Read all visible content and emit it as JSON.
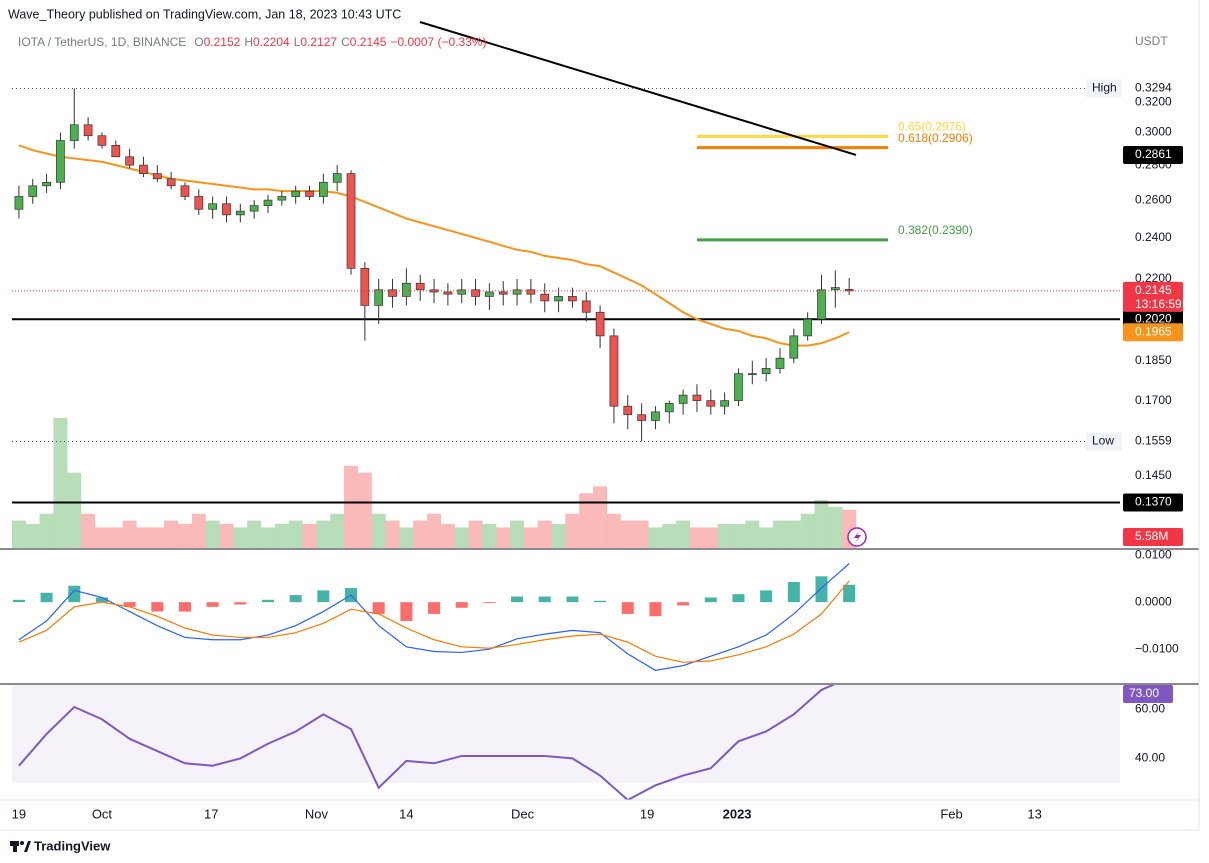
{
  "header": {
    "publisher": "Wave_Theory published on TradingView.com, Jan 18, 2023 10:43 UTC",
    "symbol": "IOTA / TetherUS, 1D, BINANCE",
    "ohlc_keys": [
      "O",
      "H",
      "L",
      "C"
    ],
    "change": "−0.0007 (−0.33%)"
  },
  "footer": "TradingView",
  "chart_data": [
    {
      "type": "candlestick",
      "y_axis_label": "USDT",
      "log_scale": true,
      "ylim": [
        0.1244,
        0.3973
      ],
      "xlim": [
        -0.5,
        79.5
      ],
      "yticks": [
        {
          "value": 0.32,
          "label": "0.3200"
        },
        {
          "value": 0.3,
          "label": "0.3000"
        },
        {
          "value": 0.28,
          "label": "0.2800"
        },
        {
          "value": 0.26,
          "label": "0.2600"
        },
        {
          "value": 0.24,
          "label": "0.2400"
        },
        {
          "value": 0.22,
          "label": "0.2200"
        },
        {
          "value": 0.185,
          "label": "0.1850"
        },
        {
          "value": 0.17,
          "label": "0.1700"
        },
        {
          "value": 0.145,
          "label": "0.1450"
        }
      ],
      "xticks": [
        {
          "value": 0,
          "label": "19"
        },
        {
          "value": 6,
          "label": "Oct"
        },
        {
          "value": 13.9,
          "label": "17"
        },
        {
          "value": 21.5,
          "label": "Nov"
        },
        {
          "value": 28,
          "label": "14"
        },
        {
          "value": 36.4,
          "label": "Dec"
        },
        {
          "value": 45.4,
          "label": "19"
        },
        {
          "value": 51.9,
          "label": "2023"
        },
        {
          "value": 67.4,
          "label": "Feb"
        },
        {
          "value": 73.4,
          "label": "13"
        }
      ],
      "up_color": "#4caf50",
      "down_color": "#ef5350",
      "open": [
        0.255,
        0.262,
        0.268,
        0.27,
        0.295,
        0.305,
        0.298,
        0.292,
        0.285,
        0.28,
        0.275,
        0.272,
        0.268,
        0.262,
        0.255,
        0.258,
        0.252,
        0.254,
        0.257,
        0.26,
        0.262,
        0.265,
        0.262,
        0.27,
        0.275,
        0.225,
        0.208,
        0.215,
        0.212,
        0.218,
        0.215,
        0.214,
        0.213,
        0.215,
        0.212,
        0.214,
        0.213,
        0.215,
        0.213,
        0.21,
        0.212,
        0.21,
        0.205,
        0.195,
        0.168,
        0.165,
        0.163,
        0.166,
        0.169,
        0.172,
        0.17,
        0.168,
        0.17,
        0.18,
        0.18,
        0.182,
        0.186,
        0.195,
        0.202,
        0.215,
        0.2152
      ],
      "high": [
        0.268,
        0.272,
        0.275,
        0.3,
        0.3294,
        0.31,
        0.3,
        0.295,
        0.29,
        0.285,
        0.28,
        0.276,
        0.27,
        0.266,
        0.262,
        0.262,
        0.258,
        0.26,
        0.263,
        0.265,
        0.268,
        0.268,
        0.275,
        0.28,
        0.277,
        0.228,
        0.22,
        0.22,
        0.225,
        0.222,
        0.22,
        0.218,
        0.22,
        0.22,
        0.218,
        0.219,
        0.22,
        0.22,
        0.218,
        0.216,
        0.216,
        0.214,
        0.208,
        0.198,
        0.172,
        0.169,
        0.168,
        0.17,
        0.174,
        0.176,
        0.174,
        0.173,
        0.182,
        0.185,
        0.186,
        0.19,
        0.198,
        0.205,
        0.222,
        0.224,
        0.2204
      ],
      "low": [
        0.25,
        0.258,
        0.264,
        0.266,
        0.29,
        0.295,
        0.29,
        0.285,
        0.278,
        0.273,
        0.27,
        0.266,
        0.26,
        0.252,
        0.25,
        0.248,
        0.248,
        0.25,
        0.253,
        0.257,
        0.258,
        0.26,
        0.258,
        0.265,
        0.222,
        0.193,
        0.2,
        0.207,
        0.208,
        0.21,
        0.209,
        0.208,
        0.209,
        0.208,
        0.206,
        0.208,
        0.208,
        0.209,
        0.205,
        0.205,
        0.207,
        0.201,
        0.19,
        0.162,
        0.16,
        0.1559,
        0.16,
        0.162,
        0.165,
        0.166,
        0.165,
        0.165,
        0.168,
        0.176,
        0.177,
        0.18,
        0.184,
        0.193,
        0.2,
        0.207,
        0.2127
      ],
      "close": [
        0.262,
        0.268,
        0.27,
        0.295,
        0.305,
        0.298,
        0.292,
        0.285,
        0.28,
        0.275,
        0.272,
        0.268,
        0.262,
        0.255,
        0.258,
        0.252,
        0.254,
        0.257,
        0.26,
        0.262,
        0.265,
        0.262,
        0.27,
        0.275,
        0.225,
        0.208,
        0.215,
        0.212,
        0.218,
        0.215,
        0.214,
        0.213,
        0.215,
        0.212,
        0.214,
        0.213,
        0.215,
        0.213,
        0.21,
        0.212,
        0.21,
        0.205,
        0.195,
        0.168,
        0.165,
        0.163,
        0.166,
        0.169,
        0.172,
        0.17,
        0.168,
        0.17,
        0.18,
        0.18,
        0.182,
        0.186,
        0.195,
        0.202,
        0.215,
        0.216,
        0.2145
      ],
      "last_color": "#f23645",
      "countdown": "13:16:59",
      "ma": {
        "color": "#f7931a",
        "values": [
          0.292,
          0.289,
          0.287,
          0.285,
          0.284,
          0.283,
          0.282,
          0.28,
          0.278,
          0.276,
          0.274,
          0.272,
          0.271,
          0.27,
          0.269,
          0.268,
          0.267,
          0.266,
          0.266,
          0.265,
          0.265,
          0.265,
          0.265,
          0.264,
          0.262,
          0.259,
          0.256,
          0.253,
          0.25,
          0.248,
          0.246,
          0.244,
          0.242,
          0.24,
          0.238,
          0.236,
          0.234,
          0.233,
          0.231,
          0.23,
          0.229,
          0.227,
          0.226,
          0.223,
          0.22,
          0.217,
          0.213,
          0.209,
          0.205,
          0.202,
          0.2,
          0.198,
          0.197,
          0.195,
          0.194,
          0.192,
          0.191,
          0.191,
          0.192,
          0.194,
          0.1965
        ]
      },
      "levels": [
        {
          "value": 0.202,
          "label": "0.2020"
        },
        {
          "value": 0.137,
          "label": "0.1370"
        }
      ],
      "high_marker": {
        "label": "High",
        "value": 0.3294
      },
      "low_marker": {
        "label": "Low",
        "value": 0.1559
      },
      "fib": [
        {
          "label": "0.65(0.2976)",
          "value": 0.2976,
          "color": "#ffd740"
        },
        {
          "label": "0.618(0.2906)",
          "value": 0.2906,
          "color": "#f57c00"
        },
        {
          "label": "0.382(0.2390)",
          "value": 0.239,
          "color": "#43a047"
        }
      ],
      "trendline": {
        "value": 0.2861,
        "color": "#000000"
      }
    },
    {
      "type": "bar",
      "ylim": [
        0,
        20
      ],
      "values": [
        4,
        3.5,
        5,
        19,
        11,
        5,
        3,
        3,
        4,
        3,
        3,
        4,
        3.5,
        5,
        4,
        3.5,
        3,
        4,
        3,
        3.5,
        4,
        3.5,
        4,
        5,
        12,
        11,
        5,
        4,
        3,
        4,
        5,
        3.5,
        3,
        4,
        3.5,
        3,
        4,
        3,
        4,
        3.5,
        5,
        8,
        9,
        5,
        4,
        4,
        3,
        3.5,
        4,
        3,
        3,
        3.5,
        3.5,
        4,
        3,
        4,
        4,
        5,
        7,
        6,
        5.58
      ],
      "value_labels": [
        null,
        null,
        null,
        null,
        null,
        null,
        null,
        null,
        null,
        null,
        null,
        null,
        null,
        null,
        null,
        null,
        null,
        null,
        null,
        null,
        null,
        null,
        null,
        null,
        null,
        null,
        null,
        null,
        null,
        null,
        null,
        null,
        null,
        null,
        null,
        null,
        null,
        null,
        null,
        null,
        null,
        null,
        null,
        null,
        null,
        null,
        null,
        null,
        null,
        null,
        null,
        null,
        null,
        null,
        null,
        null,
        null,
        null,
        null,
        null,
        "5.58M"
      ]
    },
    {
      "type": "line",
      "xlim": [
        -0.25,
        39.75
      ],
      "ylim": [
        -0.0172,
        0.0111
      ],
      "yticks": [
        {
          "value": 0.01,
          "label": "0.0100"
        },
        {
          "value": 0,
          "label": "0.0000"
        },
        {
          "value": -0.01,
          "label": "−0.0100"
        }
      ],
      "series": [
        {
          "color": "#2962ff",
          "values": [
            -0.008,
            -0.004,
            0.0025,
            0.001,
            -0.002,
            -0.005,
            -0.0075,
            -0.008,
            -0.008,
            -0.007,
            -0.005,
            -0.002,
            0.0015,
            -0.005,
            -0.0095,
            -0.0105,
            -0.0107,
            -0.01,
            -0.0078,
            -0.0068,
            -0.006,
            -0.0065,
            -0.011,
            -0.0145,
            -0.0135,
            -0.0115,
            -0.0095,
            -0.007,
            -0.0025,
            0.003,
            0.0082
          ]
        },
        {
          "color": "#f57c00",
          "values": [
            -0.0085,
            -0.006,
            -0.001,
            0,
            -0.001,
            -0.003,
            -0.0055,
            -0.007,
            -0.0075,
            -0.0075,
            -0.0065,
            -0.0045,
            -0.0015,
            -0.0025,
            -0.0055,
            -0.008,
            -0.0095,
            -0.0098,
            -0.009,
            -0.008,
            -0.0072,
            -0.0068,
            -0.0085,
            -0.0115,
            -0.0128,
            -0.0125,
            -0.0112,
            -0.0095,
            -0.0068,
            -0.0025,
            0.0045
          ]
        }
      ],
      "histogram": {
        "up_color": "#26a69a",
        "down_color": "#ff5252",
        "values": [
          0.0005,
          0.002,
          0.0035,
          0.001,
          -0.001,
          -0.002,
          -0.002,
          -0.001,
          -0.0005,
          0.0005,
          0.0015,
          0.0025,
          0.003,
          -0.0025,
          -0.004,
          -0.0025,
          -0.0012,
          -0.0002,
          0.0012,
          0.0012,
          0.0012,
          0.0003,
          -0.0025,
          -0.003,
          -0.0007,
          0.001,
          0.0017,
          0.0025,
          0.0043,
          0.0055,
          0.0037
        ]
      }
    },
    {
      "type": "line",
      "xlim": [
        -0.25,
        39.75
      ],
      "ylim": [
        23,
        70
      ],
      "band": [
        30,
        70
      ],
      "yticks": [
        {
          "value": 60,
          "label": "60.00"
        },
        {
          "value": 40,
          "label": "40.00"
        }
      ],
      "series": [
        {
          "color": "#7e57c2",
          "values": [
            37,
            50,
            61,
            56,
            48,
            43,
            38,
            37,
            40,
            46,
            51,
            58,
            52,
            28,
            39,
            38,
            41,
            41,
            41,
            41,
            40,
            33,
            23,
            29,
            33,
            36,
            47,
            51,
            58,
            68,
            73
          ],
          "value_labels": [
            null,
            null,
            null,
            null,
            null,
            null,
            null,
            null,
            null,
            null,
            null,
            null,
            null,
            null,
            null,
            null,
            null,
            null,
            null,
            null,
            null,
            null,
            null,
            null,
            null,
            null,
            null,
            null,
            null,
            null,
            "73.00"
          ]
        }
      ]
    }
  ]
}
